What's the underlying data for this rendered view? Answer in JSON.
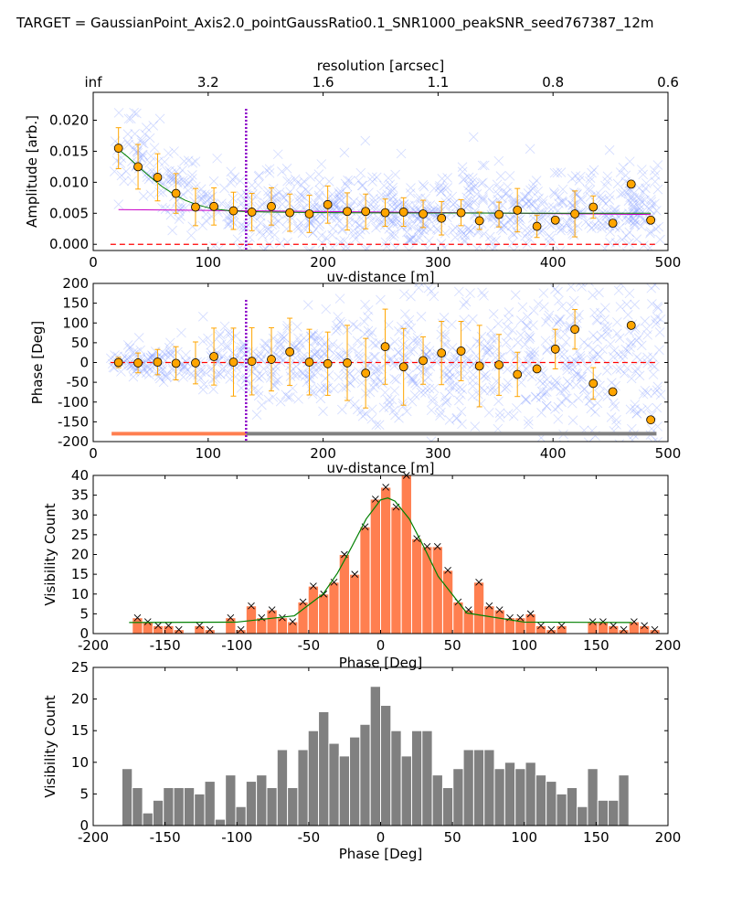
{
  "figure_title": "TARGET = GaussianPoint_Axis2.0_pointGaussRatio0.1_SNR1000_peakSNR_seed767387_12m",
  "chart_data": [
    {
      "type": "scatter",
      "panel": "amplitude-vs-uvdist",
      "xlabel": "uv-distance [m]",
      "ylabel": "Amplitude [arb.]",
      "xlim": [
        0,
        500
      ],
      "ylim": [
        -0.001,
        0.0245
      ],
      "xticks": [
        0,
        100,
        200,
        300,
        400,
        500
      ],
      "yticks": [
        0.0,
        0.005,
        0.01,
        0.015,
        0.02
      ],
      "ytick_labels": [
        "0.000",
        "0.005",
        "0.010",
        "0.015",
        "0.020"
      ],
      "top_axis": {
        "label": "resolution [arcsec]",
        "ticks": [
          {
            "x": 0,
            "label": "inf"
          },
          {
            "x": 100,
            "label": "3.2"
          },
          {
            "x": 200,
            "label": "1.6"
          },
          {
            "x": 300,
            "label": "1.1"
          },
          {
            "x": 400,
            "label": "0.8"
          },
          {
            "x": 500,
            "label": "0.6"
          }
        ]
      },
      "binned": {
        "x": [
          22,
          39,
          56,
          72,
          89,
          105,
          122,
          138,
          155,
          171,
          188,
          204,
          221,
          237,
          254,
          270,
          287,
          303,
          320,
          336,
          353,
          369,
          386,
          402,
          419,
          435,
          452,
          468,
          485
        ],
        "y": [
          0.0155,
          0.0125,
          0.0108,
          0.0082,
          0.006,
          0.0061,
          0.0054,
          0.0052,
          0.0061,
          0.0051,
          0.0049,
          0.0064,
          0.0053,
          0.0053,
          0.0051,
          0.0052,
          0.0049,
          0.0042,
          0.0051,
          0.0038,
          0.0048,
          0.0055,
          0.0029,
          0.0039,
          0.0049,
          0.006,
          0.0034,
          0.0097,
          0.0039
        ],
        "err": [
          0.0033,
          0.0036,
          0.0038,
          0.0032,
          0.003,
          0.003,
          0.003,
          0.003,
          0.003,
          0.003,
          0.003,
          0.003,
          0.003,
          0.0028,
          0.0022,
          0.0023,
          0.0022,
          0.0027,
          0.0021,
          0.0014,
          0.002,
          0.0035,
          0.0018,
          0.0,
          0.0037,
          0.0018,
          0.0,
          0.0,
          0.0
        ]
      },
      "green_fit": {
        "x": [
          20,
          30,
          40,
          50,
          60,
          70,
          80,
          90,
          100,
          110,
          120,
          130,
          150,
          200,
          300,
          400,
          485
        ],
        "y": [
          0.0156,
          0.0141,
          0.0124,
          0.0108,
          0.0093,
          0.0081,
          0.0071,
          0.0064,
          0.0059,
          0.0056,
          0.0054,
          0.0053,
          0.0052,
          0.0051,
          0.00505,
          0.005,
          0.005
        ]
      },
      "purple_fit": {
        "x": [
          22,
          485
        ],
        "y": [
          0.0056,
          0.0048
        ]
      },
      "zero_line": 0.0,
      "vline_x": 133,
      "scatter_color": "#7b96ff",
      "marker_color": "#ffa500"
    },
    {
      "type": "scatter",
      "panel": "phase-vs-uvdist",
      "xlabel": "uv-distance [m]",
      "ylabel": "Phase [Deg]",
      "xlim": [
        0,
        500
      ],
      "ylim": [
        -200,
        200
      ],
      "xticks": [
        0,
        100,
        200,
        300,
        400,
        500
      ],
      "yticks": [
        -200,
        -150,
        -100,
        -50,
        0,
        50,
        100,
        150,
        200
      ],
      "binned": {
        "x": [
          22,
          39,
          56,
          72,
          89,
          105,
          122,
          138,
          155,
          171,
          188,
          204,
          221,
          237,
          254,
          270,
          287,
          303,
          320,
          336,
          353,
          369,
          386,
          402,
          419,
          435,
          452,
          468,
          485
        ],
        "y": [
          0,
          -1,
          1,
          -2,
          -1,
          15,
          1,
          3,
          8,
          27,
          1,
          -3,
          -1,
          -27,
          40,
          -11,
          5,
          24,
          29,
          -9,
          -6,
          -30,
          -16,
          34,
          84,
          -53,
          -74,
          94,
          -145
        ],
        "err": [
          13,
          25,
          32,
          42,
          53,
          72,
          86,
          85,
          80,
          85,
          83,
          80,
          95,
          88,
          95,
          97,
          60,
          80,
          75,
          103,
          77,
          56,
          0,
          50,
          50,
          40,
          0,
          0,
          0
        ]
      },
      "zero_line": 0,
      "vline_x": 133,
      "bar_y": -180,
      "bar_segments": [
        {
          "x0": 16,
          "x1": 133,
          "color": "#ff7f50"
        },
        {
          "x0": 133,
          "x1": 490,
          "color": "#808080"
        }
      ]
    },
    {
      "type": "bar",
      "panel": "phase-histogram-short",
      "xlabel": "Phase [Deg]",
      "ylabel": "Visibility Count",
      "xlim": [
        -200,
        200
      ],
      "ylim": [
        0,
        40
      ],
      "xticks": [
        -200,
        -150,
        -100,
        -50,
        0,
        50,
        100,
        150,
        200
      ],
      "yticks": [
        0,
        5,
        10,
        15,
        20,
        25,
        30,
        35,
        40
      ],
      "bin_width": 7.2,
      "bin_start": -180,
      "values": [
        0,
        4,
        3,
        2,
        2,
        1,
        0,
        2,
        1,
        0,
        4,
        1,
        7,
        4,
        6,
        4,
        3,
        8,
        12,
        10,
        13,
        20,
        15,
        27,
        34,
        37,
        32,
        40,
        24,
        22,
        22,
        16,
        8,
        6,
        13,
        7,
        6,
        4,
        4,
        5,
        2,
        1,
        2,
        0,
        0,
        3,
        3,
        2,
        1,
        3,
        2,
        1
      ],
      "fit": {
        "x": [
          -175,
          -100,
          -60,
          -40,
          -30,
          -20,
          -10,
          0,
          5,
          10,
          20,
          30,
          40,
          60,
          100,
          175
        ],
        "y": [
          2.8,
          2.9,
          4.5,
          10.0,
          15.3,
          22.0,
          29.0,
          33.8,
          34.3,
          33.5,
          29.0,
          22.0,
          14.5,
          5.2,
          2.9,
          2.8
        ]
      },
      "bar_color": "#ff7f50",
      "fit_color": "#008000"
    },
    {
      "type": "bar",
      "panel": "phase-histogram-long",
      "xlabel": "Phase [Deg]",
      "ylabel": "Visibility Count",
      "xlim": [
        -200,
        200
      ],
      "ylim": [
        0,
        25
      ],
      "xticks": [
        -200,
        -150,
        -100,
        -50,
        0,
        50,
        100,
        150,
        200
      ],
      "yticks": [
        0,
        5,
        10,
        15,
        20,
        25
      ],
      "bin_width": 7.2,
      "bin_start": -180,
      "values": [
        9,
        6,
        2,
        4,
        6,
        6,
        6,
        5,
        7,
        1,
        8,
        3,
        7,
        8,
        6,
        12,
        6,
        12,
        15,
        18,
        13,
        11,
        14,
        16,
        22,
        19,
        15,
        11,
        15,
        15,
        8,
        6,
        9,
        12,
        12,
        12,
        9,
        10,
        9,
        10,
        8,
        7,
        5,
        6,
        3,
        9,
        4,
        4,
        8
      ],
      "bar_color": "#808080"
    }
  ]
}
